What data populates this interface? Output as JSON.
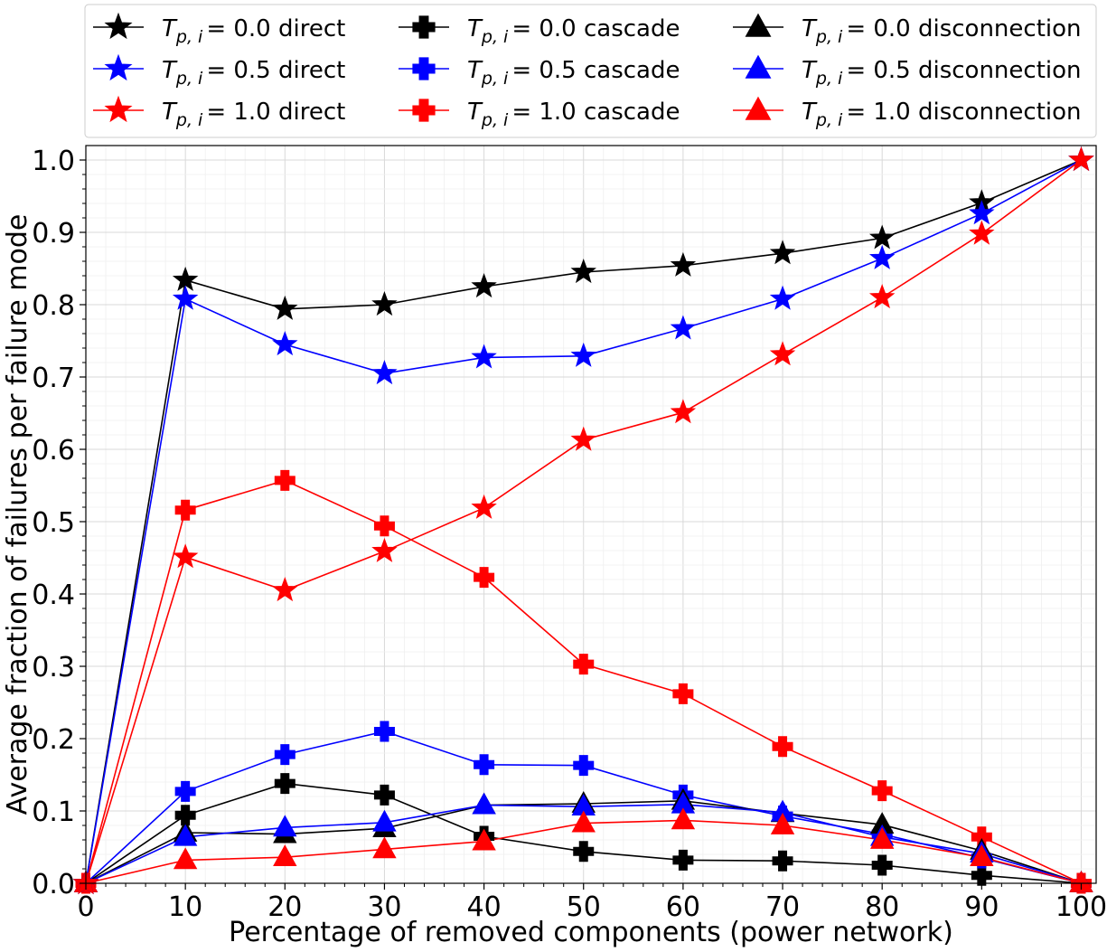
{
  "chart_data": {
    "type": "line",
    "xlabel": "Percentage of removed components (power network)",
    "ylabel": "Average fraction of failures per failure mode",
    "xlim": [
      0,
      101.5
    ],
    "ylim": [
      0,
      1.02
    ],
    "x_ticks": [
      "0",
      "10",
      "20",
      "30",
      "40",
      "50",
      "60",
      "70",
      "80",
      "90",
      "100"
    ],
    "y_ticks": [
      "0.0",
      "0.1",
      "0.2",
      "0.3",
      "0.4",
      "0.5",
      "0.6",
      "0.7",
      "0.8",
      "0.9",
      "1.0"
    ],
    "grid": true,
    "legend_position": "top, above plot, 3 columns",
    "x": [
      0,
      10,
      20,
      30,
      40,
      50,
      60,
      70,
      80,
      90,
      100
    ],
    "series": [
      {
        "name": "T_{p,i} = 0.0 direct",
        "color": "#000000",
        "marker": "star",
        "values": [
          0,
          0.834,
          0.794,
          0.8,
          0.825,
          0.845,
          0.854,
          0.871,
          0.892,
          0.941,
          1.0
        ]
      },
      {
        "name": "T_{p,i} = 0.5 direct",
        "color": "#0000ff",
        "marker": "star",
        "values": [
          0,
          0.808,
          0.745,
          0.705,
          0.727,
          0.729,
          0.767,
          0.808,
          0.864,
          0.926,
          1.0
        ]
      },
      {
        "name": "T_{p,i} = 1.0 direct",
        "color": "#ff0000",
        "marker": "star",
        "values": [
          0,
          0.451,
          0.405,
          0.459,
          0.519,
          0.613,
          0.651,
          0.731,
          0.81,
          0.898,
          1.0
        ]
      },
      {
        "name": "T_{p,i} = 0.0 cascade",
        "color": "#000000",
        "marker": "plus",
        "values": [
          0,
          0.094,
          0.138,
          0.122,
          0.065,
          0.044,
          0.032,
          0.031,
          0.025,
          0.011,
          0
        ]
      },
      {
        "name": "T_{p,i} = 0.5 cascade",
        "color": "#0000ff",
        "marker": "plus",
        "values": [
          0,
          0.127,
          0.178,
          0.21,
          0.164,
          0.163,
          0.122,
          0.093,
          0.068,
          0.035,
          0
        ]
      },
      {
        "name": "T_{p,i} = 1.0 cascade",
        "color": "#ff0000",
        "marker": "plus",
        "values": [
          0,
          0.516,
          0.557,
          0.494,
          0.423,
          0.303,
          0.262,
          0.189,
          0.128,
          0.064,
          0
        ]
      },
      {
        "name": "T_{p,i} = 0.0 disconnection",
        "color": "#000000",
        "marker": "triangle",
        "values": [
          0,
          0.07,
          0.068,
          0.076,
          0.108,
          0.11,
          0.114,
          0.097,
          0.081,
          0.045,
          0
        ]
      },
      {
        "name": "T_{p,i} = 0.5 disconnection",
        "color": "#0000ff",
        "marker": "triangle",
        "values": [
          0,
          0.064,
          0.077,
          0.084,
          0.108,
          0.106,
          0.109,
          0.098,
          0.064,
          0.041,
          0
        ]
      },
      {
        "name": "T_{p,i} = 1.0 disconnection",
        "color": "#ff0000",
        "marker": "triangle",
        "values": [
          0,
          0.032,
          0.036,
          0.047,
          0.058,
          0.083,
          0.087,
          0.08,
          0.06,
          0.036,
          0
        ]
      }
    ]
  },
  "legend": {
    "items": [
      {
        "prefix": "= 0.0 direct"
      },
      {
        "prefix": "= 0.5 direct"
      },
      {
        "prefix": "= 1.0 direct"
      },
      {
        "prefix": "= 0.0 cascade"
      },
      {
        "prefix": "= 0.5 cascade"
      },
      {
        "prefix": "= 1.0 cascade"
      },
      {
        "prefix": "= 0.0 disconnection"
      },
      {
        "prefix": "= 0.5 disconnection"
      },
      {
        "prefix": "= 1.0 disconnection"
      }
    ]
  }
}
